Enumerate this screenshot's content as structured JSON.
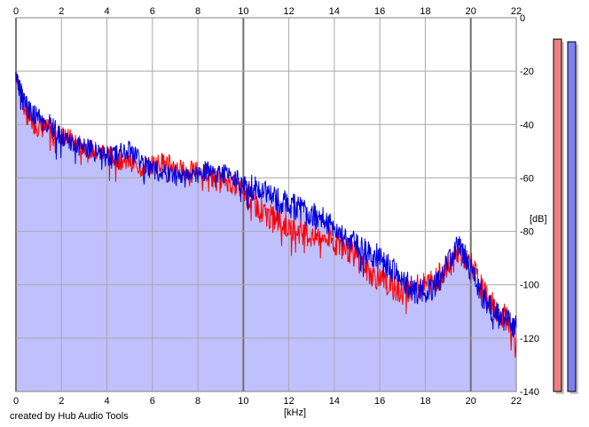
{
  "chart_data": {
    "type": "line",
    "title": "",
    "xlabel": "[kHz]",
    "ylabel": "[dB]",
    "xlim": [
      0,
      22
    ],
    "ylim": [
      -140,
      0
    ],
    "x_ticks": [
      "0",
      "2",
      "4",
      "6",
      "8",
      "10",
      "12",
      "14",
      "16",
      "18",
      "20",
      "22"
    ],
    "y_ticks": [
      "0",
      "-20",
      "-40",
      "-60",
      "-80",
      "-100",
      "-120",
      "-140"
    ],
    "grid": true,
    "series": [
      {
        "color": "#ff0000",
        "points": [
          [
            0,
            -20
          ],
          [
            0.3,
            -32
          ],
          [
            0.6,
            -38
          ],
          [
            1,
            -41
          ],
          [
            1.5,
            -42
          ],
          [
            2,
            -44
          ],
          [
            2.5,
            -46
          ],
          [
            3,
            -48
          ],
          [
            3.5,
            -50
          ],
          [
            4,
            -51
          ],
          [
            4.5,
            -53
          ],
          [
            5,
            -54
          ],
          [
            5.5,
            -56
          ],
          [
            6,
            -55
          ],
          [
            6.5,
            -54
          ],
          [
            7,
            -56
          ],
          [
            7.5,
            -58
          ],
          [
            8,
            -57
          ],
          [
            8.5,
            -59
          ],
          [
            9,
            -60
          ],
          [
            9.5,
            -62
          ],
          [
            10,
            -65
          ],
          [
            10.5,
            -70
          ],
          [
            11,
            -74
          ],
          [
            11.5,
            -76
          ],
          [
            12,
            -78
          ],
          [
            12.5,
            -80
          ],
          [
            13,
            -82
          ],
          [
            13.5,
            -82
          ],
          [
            14,
            -84
          ],
          [
            14.5,
            -86
          ],
          [
            15,
            -90
          ],
          [
            15.5,
            -95
          ],
          [
            16,
            -98
          ],
          [
            16.5,
            -101
          ],
          [
            17,
            -103
          ],
          [
            17.5,
            -101
          ],
          [
            18,
            -100
          ],
          [
            18.5,
            -98
          ],
          [
            19,
            -93
          ],
          [
            19.5,
            -88
          ],
          [
            20,
            -92
          ],
          [
            20.5,
            -102
          ],
          [
            21,
            -108
          ],
          [
            21.5,
            -112
          ],
          [
            22,
            -120
          ]
        ]
      },
      {
        "color": "#0000dd",
        "points": [
          [
            0,
            -22
          ],
          [
            0.3,
            -30
          ],
          [
            0.6,
            -35
          ],
          [
            1,
            -38
          ],
          [
            1.5,
            -40
          ],
          [
            2,
            -45
          ],
          [
            2.5,
            -47
          ],
          [
            3,
            -49
          ],
          [
            3.5,
            -50
          ],
          [
            4,
            -52
          ],
          [
            4.5,
            -51
          ],
          [
            5,
            -50
          ],
          [
            5.5,
            -54
          ],
          [
            6,
            -57
          ],
          [
            6.5,
            -58
          ],
          [
            7,
            -59
          ],
          [
            7.5,
            -60
          ],
          [
            8,
            -58
          ],
          [
            8.5,
            -57
          ],
          [
            9,
            -58
          ],
          [
            9.5,
            -60
          ],
          [
            10,
            -62
          ],
          [
            10.5,
            -64
          ],
          [
            11,
            -66
          ],
          [
            11.5,
            -68
          ],
          [
            12,
            -70
          ],
          [
            12.5,
            -72
          ],
          [
            13,
            -74
          ],
          [
            13.5,
            -75
          ],
          [
            14,
            -78
          ],
          [
            14.5,
            -82
          ],
          [
            15,
            -85
          ],
          [
            15.5,
            -88
          ],
          [
            16,
            -90
          ],
          [
            16.5,
            -94
          ],
          [
            17,
            -98
          ],
          [
            17.5,
            -102
          ],
          [
            18,
            -103
          ],
          [
            18.5,
            -100
          ],
          [
            19,
            -92
          ],
          [
            19.5,
            -85
          ],
          [
            20,
            -94
          ],
          [
            20.5,
            -104
          ],
          [
            21,
            -110
          ],
          [
            21.5,
            -113
          ],
          [
            22,
            -116
          ]
        ]
      }
    ],
    "fill_color": "#c0c0ff"
  },
  "meters": [
    {
      "level_db": -8,
      "color": "#f08080"
    },
    {
      "level_db": -9,
      "color": "#8080f0"
    }
  ],
  "credit": "created by Hub Audio Tools"
}
